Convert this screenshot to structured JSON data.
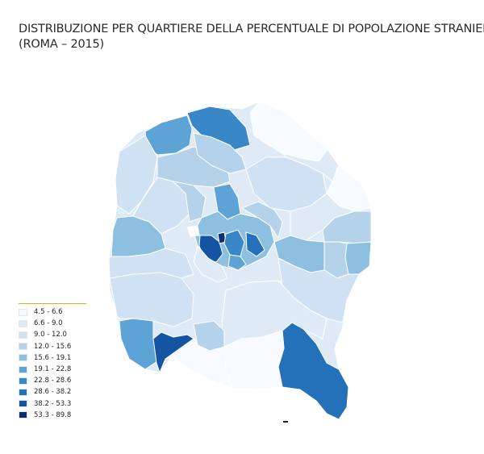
{
  "title": {
    "line1": "DISTRIBUZIONE PER QUARTIERE DELLA PERCENTUALE DI POPOLAZIONE STRANIERA",
    "line2": "(ROMA – 2015)"
  },
  "legend": {
    "items": [
      {
        "label": "4.5 - 6.6",
        "color": "#f7fbff"
      },
      {
        "label": "6.6 - 9.0",
        "color": "#deebf7"
      },
      {
        "label": "9.0 - 12.0",
        "color": "#cfe1f2"
      },
      {
        "label": "12.0 - 15.6",
        "color": "#b4d3ea"
      },
      {
        "label": "15.6 - 19.1",
        "color": "#8dc0e0"
      },
      {
        "label": "19.1 - 22.8",
        "color": "#5ea3d6"
      },
      {
        "label": "22.8 - 28.6",
        "color": "#3a87c7"
      },
      {
        "label": "28.6 - 38.2",
        "color": "#2470b9"
      },
      {
        "label": "38.2 - 53.3",
        "color": "#1553a3"
      },
      {
        "label": "53.3 - 89.8",
        "color": "#0b2f72"
      }
    ]
  },
  "map": {
    "boundary_color": "#ffffff",
    "regions": [
      {
        "name": "north-east",
        "class": 1
      },
      {
        "name": "east-outer",
        "class": 1
      },
      {
        "name": "north-central",
        "class": 2
      },
      {
        "name": "north-west",
        "class": 2
      },
      {
        "name": "west-outer",
        "class": 2
      },
      {
        "name": "south-west",
        "class": 2
      },
      {
        "name": "south-central",
        "class": 2
      },
      {
        "name": "south-east-outer",
        "class": 1
      },
      {
        "name": "south-inner",
        "class": 1
      },
      {
        "name": "north-top",
        "class": 6
      },
      {
        "name": "north-west-top",
        "class": 5
      },
      {
        "name": "west-mid",
        "class": 4
      },
      {
        "name": "east-mid",
        "class": 4
      },
      {
        "name": "far-east",
        "class": 4
      },
      {
        "name": "south-west-coast",
        "class": 5
      },
      {
        "name": "ostia-west",
        "class": 8
      },
      {
        "name": "south-east",
        "class": 7
      },
      {
        "name": "centre-west",
        "class": 8
      },
      {
        "name": "centre",
        "class": 9
      },
      {
        "name": "centre-east",
        "class": 6
      },
      {
        "name": "south-centre-small",
        "class": 3
      }
    ]
  }
}
